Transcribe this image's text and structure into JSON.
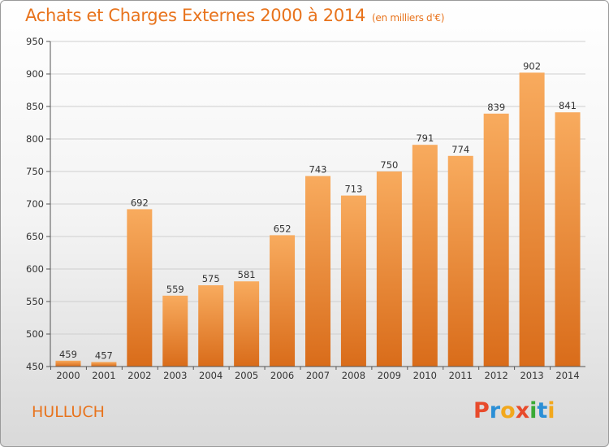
{
  "title": "Achats et Charges Externes 2000 à 2014",
  "unit_note": "(en milliers d'€)",
  "city": "HULLUCH",
  "logo": {
    "letters": [
      "P",
      "r",
      "o",
      "x",
      "i",
      "t",
      "i"
    ],
    "colors": [
      "#e84b2c",
      "#2b8fd6",
      "#f2a81d",
      "#e84b2c",
      "#3aa935",
      "#2b8fd6",
      "#f2a81d"
    ]
  },
  "colors": {
    "accent": "#e8731c",
    "bar_top": "#f8ab5e",
    "bar_bottom": "#d96c1a"
  },
  "chart_data": {
    "type": "bar",
    "title": "Achats et Charges Externes 2000 à 2014",
    "categories": [
      "2000",
      "2001",
      "2002",
      "2003",
      "2004",
      "2005",
      "2006",
      "2007",
      "2008",
      "2009",
      "2010",
      "2011",
      "2012",
      "2013",
      "2014"
    ],
    "values": [
      459,
      457,
      692,
      559,
      575,
      581,
      652,
      743,
      713,
      750,
      791,
      774,
      839,
      902,
      841
    ],
    "ylim": [
      450,
      950
    ],
    "yticks": [
      450,
      500,
      550,
      600,
      650,
      700,
      750,
      800,
      850,
      900,
      950
    ],
    "grid": true,
    "data_labels": true
  }
}
